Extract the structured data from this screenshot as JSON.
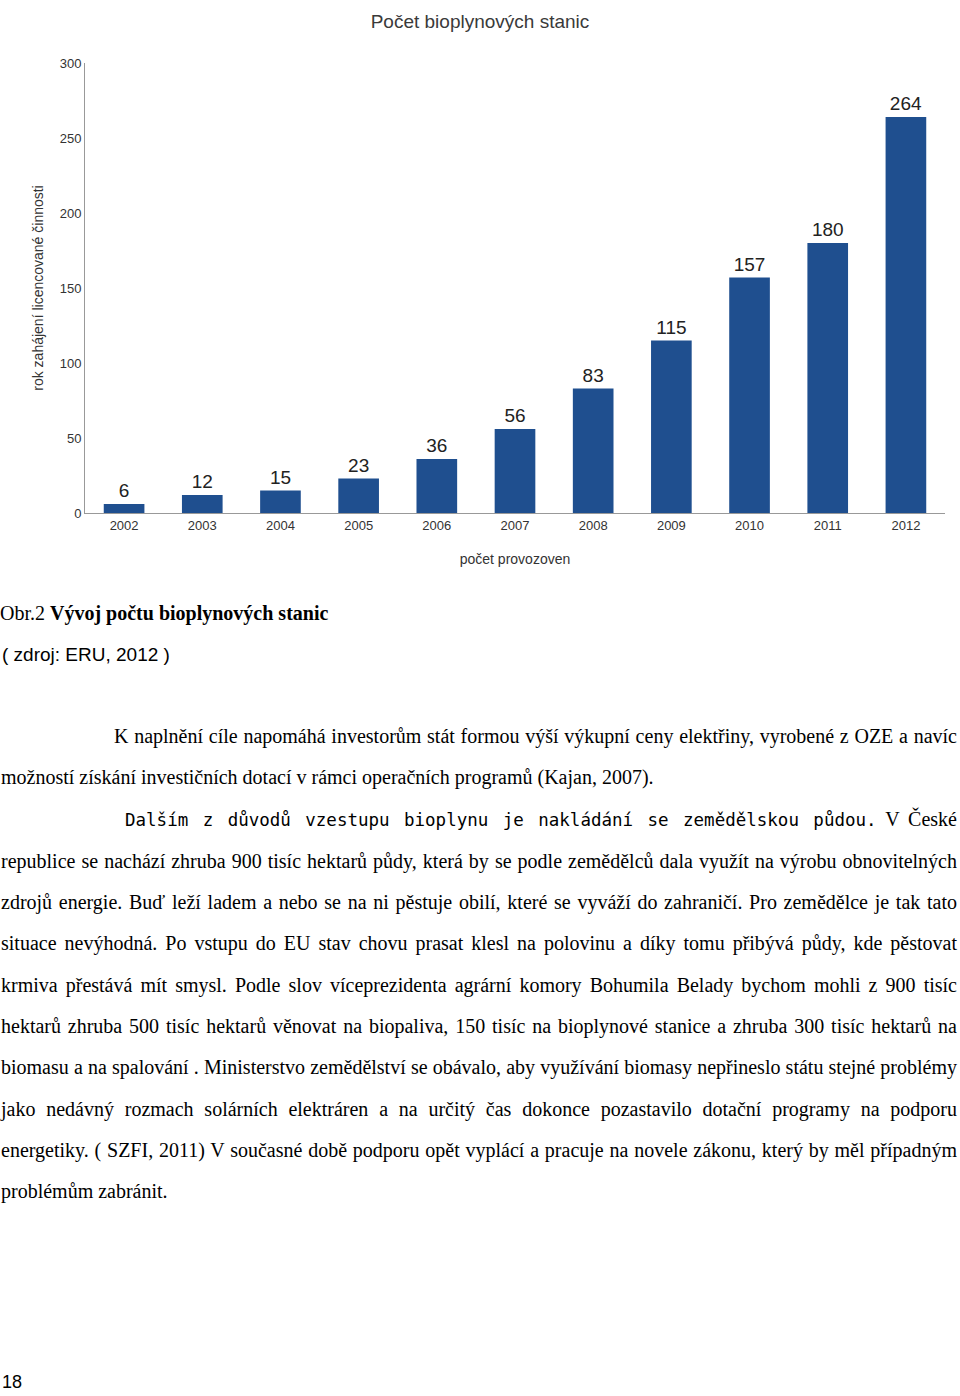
{
  "chart_data": {
    "type": "bar",
    "title": "Počet bioplynových stanic",
    "x_label": "počet provozoven",
    "y_label": "rok zahájení licencované činnosti",
    "categories": [
      "2002",
      "2003",
      "2004",
      "2005",
      "2006",
      "2007",
      "2008",
      "2009",
      "2010",
      "2011",
      "2012"
    ],
    "values": [
      6,
      12,
      15,
      23,
      36,
      56,
      83,
      115,
      157,
      180,
      264
    ],
    "color": "#1f4f8f",
    "ylim": [
      0,
      300
    ],
    "yticks": [
      0,
      50,
      100,
      150,
      200,
      250,
      300
    ],
    "grid": false,
    "data_labels": true
  },
  "caption": {
    "label": "Obr.2",
    "title": "Vývoj počtu bioplynových stanic",
    "source": "( zdroj: ERU, 2012 )"
  },
  "paragraphs": [
    {
      "text": "K naplnění cíle napomáhá investorům stát  formou výší výkupní ceny elektřiny, vyrobené z OZE a navíc možností získání investičních dotací v rámci operačních programů (Kajan, 2007)."
    },
    {
      "lead": "Dalším z důvodů vzestupu bioplynu je nakládání se zemědělskou půdou.",
      "text": "V České republice se nachází zhruba 900 tisíc hektarů půdy, která by se podle zemědělců dala využít na výrobu obnovitelných zdrojů energie. Buď leží ladem a nebo se na ni pěstuje obilí, které se vyváží do zahraničí. Pro zemědělce je tak tato situace nevýhodná. Po vstupu do EU stav chovu prasat klesl na polovinu a díky tomu přibývá půdy, kde pěstovat krmiva přestává mít smysl. Podle slov víceprezidenta agrární komory Bohumila Belady bychom mohli z 900 tisíc hektarů zhruba 500 tisíc hektarů věnovat na biopaliva, 150 tisíc na bioplynové stanice a zhruba 300 tisíc hektarů na biomasu a na spalování . Ministerstvo zemědělství se obávalo, aby využívání biomasy nepřineslo státu stejné problémy jako nedávný rozmach solárních elektráren a na určitý čas dokonce pozastavilo dotační programy na podporu energetiky. ( SZFI, 2011) V současné době podporu opět vyplácí a  pracuje na novele zákonu, který by měl případným problémům zabránit."
    }
  ],
  "page_number": "18"
}
